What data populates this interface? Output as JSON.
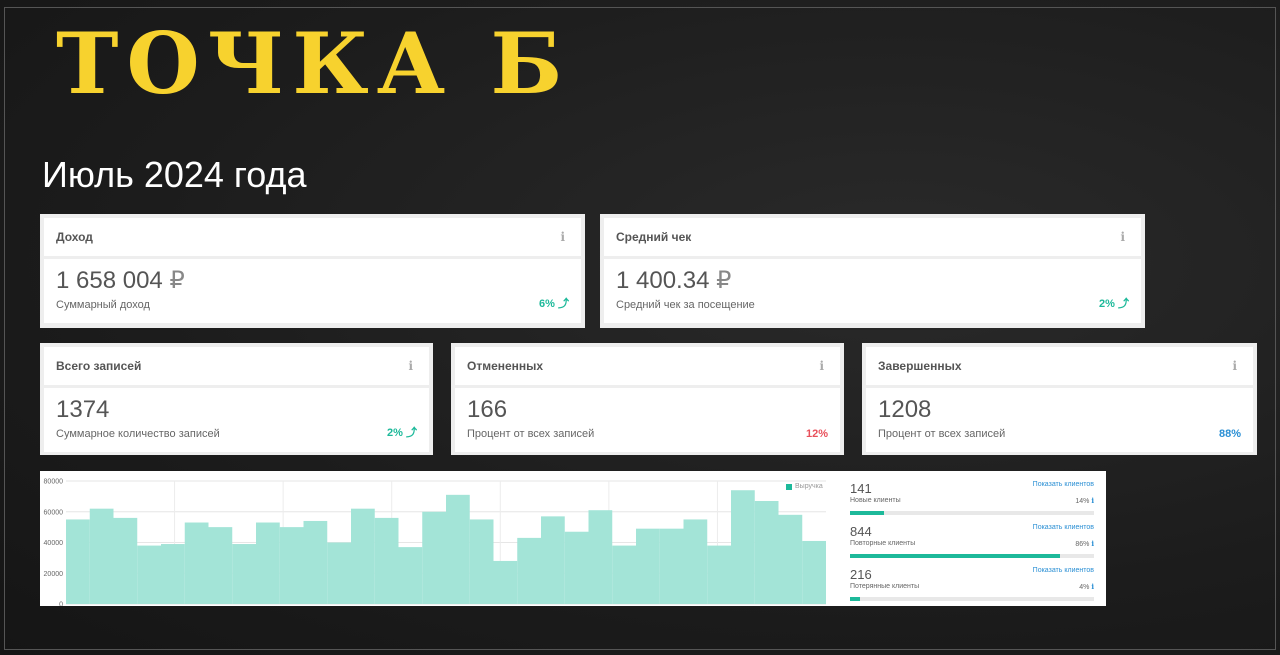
{
  "brand": "ТОЧКА Б",
  "period": "Июль 2024 года",
  "top_cards": [
    {
      "title": "Доход",
      "value": "1 658 004",
      "currency": "₽",
      "desc": "Суммарный доход",
      "trend": "6% ⤴"
    },
    {
      "title": "Средний чек",
      "value": "1 400.34",
      "currency": "₽",
      "desc": "Средний чек за посещение",
      "trend": "2% ⤴"
    }
  ],
  "mid_cards": [
    {
      "title": "Всего записей",
      "value": "1374",
      "desc": "Суммарное количество записей",
      "trend": "2% ⤴"
    },
    {
      "title": "Отмененных",
      "value": "166",
      "desc": "Процент от всех записей",
      "trend": "12%"
    },
    {
      "title": "Завершенных",
      "value": "1208",
      "desc": "Процент от всех записей",
      "trend": "88%"
    }
  ],
  "info_glyph": "i",
  "chart_data": {
    "type": "bar",
    "series": [
      {
        "name": "Выручка",
        "values": [
          55000,
          62000,
          56000,
          38000,
          39000,
          53000,
          50000,
          39000,
          53000,
          50000,
          54000,
          40000,
          62000,
          56000,
          37000,
          60000,
          71000,
          55000,
          28000,
          43000,
          57000,
          47000,
          61000,
          38000,
          49000,
          49000,
          55000,
          38000,
          74000,
          67000,
          58000,
          41000
        ]
      }
    ],
    "ylim": [
      0,
      80000
    ],
    "yticks": [
      "80000",
      "60000",
      "40000",
      "20000",
      "0"
    ],
    "grid": true,
    "legend": "top-right",
    "color": "#a3e4d7"
  },
  "stats": [
    {
      "number": "141",
      "label": "Новые клиенты",
      "link": "Показать клиентов",
      "percent": "14%",
      "fraction": 0.14
    },
    {
      "number": "844",
      "label": "Повторные клиенты",
      "link": "Показать клиентов",
      "percent": "86%",
      "fraction": 0.86
    },
    {
      "number": "216",
      "label": "Потерянные клиенты",
      "link": "Показать клиентов",
      "percent": "4%",
      "fraction": 0.04
    }
  ],
  "colors": {
    "brand": "#f7d22e",
    "accent": "#1db99a",
    "negative": "#e8505b",
    "link": "#2a8fd4"
  }
}
